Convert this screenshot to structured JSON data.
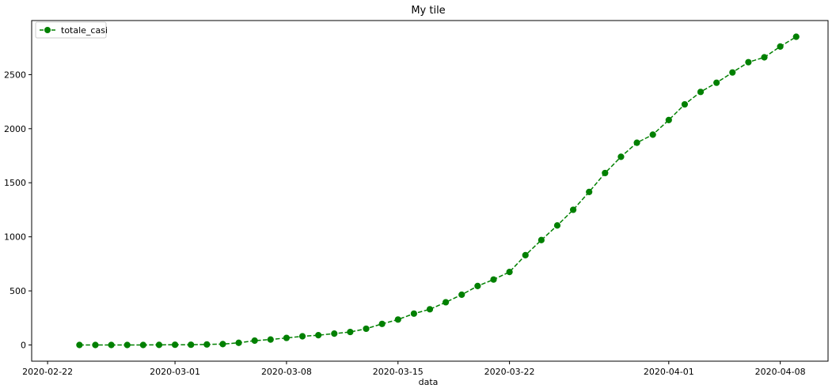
{
  "chart_data": {
    "type": "line",
    "title": "My tile",
    "xlabel": "data",
    "ylabel": "",
    "x_type": "date",
    "x_ticks": [
      "2020-02-22",
      "2020-03-01",
      "2020-03-08",
      "2020-03-15",
      "2020-03-22",
      "2020-04-01",
      "2020-04-08"
    ],
    "y_ticks": [
      0,
      500,
      1000,
      1500,
      2000,
      2500
    ],
    "xlim": [
      "2020-02-21",
      "2020-04-11"
    ],
    "ylim": [
      -150,
      3000
    ],
    "grid": false,
    "legend_position": "top-left",
    "series": [
      {
        "name": "totale_casi",
        "color": "#008000",
        "linestyle": "dashed",
        "marker": "circle",
        "x": [
          "2020-02-24",
          "2020-02-25",
          "2020-02-26",
          "2020-02-27",
          "2020-02-28",
          "2020-02-29",
          "2020-03-01",
          "2020-03-02",
          "2020-03-03",
          "2020-03-04",
          "2020-03-05",
          "2020-03-06",
          "2020-03-07",
          "2020-03-08",
          "2020-03-09",
          "2020-03-10",
          "2020-03-11",
          "2020-03-12",
          "2020-03-13",
          "2020-03-14",
          "2020-03-15",
          "2020-03-16",
          "2020-03-17",
          "2020-03-18",
          "2020-03-19",
          "2020-03-20",
          "2020-03-21",
          "2020-03-22",
          "2020-03-23",
          "2020-03-24",
          "2020-03-25",
          "2020-03-26",
          "2020-03-27",
          "2020-03-28",
          "2020-03-29",
          "2020-03-30",
          "2020-03-31",
          "2020-04-01",
          "2020-04-02",
          "2020-04-03",
          "2020-04-04",
          "2020-04-05",
          "2020-04-06",
          "2020-04-07",
          "2020-04-08",
          "2020-04-09"
        ],
        "values": [
          0,
          0,
          0,
          0,
          0,
          1,
          2,
          2,
          5,
          8,
          20,
          40,
          50,
          65,
          80,
          90,
          105,
          120,
          150,
          195,
          235,
          290,
          330,
          395,
          465,
          545,
          605,
          675,
          830,
          970,
          1105,
          1250,
          1415,
          1590,
          1740,
          1870,
          1945,
          2080,
          2225,
          2340,
          2425,
          2520,
          2615,
          2660,
          2760,
          2850
        ]
      }
    ]
  }
}
